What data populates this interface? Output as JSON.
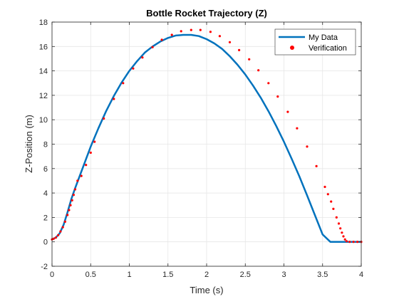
{
  "chart_data": {
    "type": "line",
    "title": "Bottle Rocket Trajectory (Z)",
    "xlabel": "Time (s)",
    "ylabel": "Z-Position (m)",
    "xlim": [
      0,
      4
    ],
    "ylim": [
      -2,
      18
    ],
    "xticks": [
      0,
      0.5,
      1,
      1.5,
      2,
      2.5,
      3,
      3.5,
      4
    ],
    "xtick_labels": [
      "0",
      "0.5",
      "1",
      "1.5",
      "2",
      "2.5",
      "3",
      "3.5",
      "4"
    ],
    "yticks": [
      -2,
      0,
      2,
      4,
      6,
      8,
      10,
      12,
      14,
      16,
      18
    ],
    "ytick_labels": [
      "-2",
      "0",
      "2",
      "4",
      "6",
      "8",
      "10",
      "12",
      "14",
      "16",
      "18"
    ],
    "grid": true,
    "legend_position": "top-right",
    "series": [
      {
        "name": "My Data",
        "style": "line",
        "color": "#0072BD",
        "x": [
          0,
          0.05,
          0.1,
          0.15,
          0.2,
          0.25,
          0.3,
          0.4,
          0.5,
          0.6,
          0.7,
          0.8,
          0.9,
          1.0,
          1.1,
          1.2,
          1.3,
          1.4,
          1.5,
          1.6,
          1.7,
          1.8,
          1.9,
          2.0,
          2.1,
          2.2,
          2.3,
          2.4,
          2.5,
          2.6,
          2.7,
          2.8,
          2.9,
          3.0,
          3.1,
          3.2,
          3.3,
          3.4,
          3.5,
          3.6,
          3.7,
          3.78,
          3.8,
          3.9,
          4.0
        ],
        "y": [
          0.2,
          0.35,
          0.7,
          1.4,
          2.4,
          3.5,
          4.4,
          6.1,
          7.8,
          9.3,
          10.7,
          11.95,
          13.05,
          14.0,
          14.8,
          15.5,
          16.0,
          16.4,
          16.7,
          16.9,
          16.95,
          16.95,
          16.85,
          16.6,
          16.25,
          15.8,
          15.2,
          14.5,
          13.7,
          12.8,
          11.8,
          10.7,
          9.5,
          8.2,
          6.8,
          5.35,
          3.8,
          2.2,
          0.6,
          -0.0,
          0.0,
          0.0,
          0.0,
          0.0,
          0.0
        ]
      },
      {
        "name": "Verification",
        "style": "markers",
        "color": "#FF0000",
        "x": [
          0.0,
          0.02,
          0.05,
          0.08,
          0.11,
          0.14,
          0.17,
          0.2,
          0.22,
          0.24,
          0.26,
          0.28,
          0.3,
          0.33,
          0.38,
          0.44,
          0.5,
          0.55,
          0.67,
          0.8,
          0.92,
          1.05,
          1.17,
          1.3,
          1.42,
          1.55,
          1.67,
          1.8,
          1.92,
          2.05,
          2.17,
          2.3,
          2.42,
          2.55,
          2.67,
          2.8,
          2.92,
          3.05,
          3.17,
          3.3,
          3.42,
          3.53,
          3.57,
          3.61,
          3.64,
          3.68,
          3.71,
          3.73,
          3.75,
          3.77,
          3.79,
          3.81,
          3.85,
          3.9,
          3.95,
          4.0
        ],
        "y": [
          0.2,
          0.25,
          0.35,
          0.55,
          0.85,
          1.2,
          1.65,
          2.2,
          2.6,
          3.0,
          3.4,
          3.85,
          4.3,
          5.0,
          5.4,
          6.3,
          7.3,
          8.2,
          10.1,
          11.7,
          13.0,
          14.2,
          15.1,
          15.95,
          16.55,
          16.95,
          17.25,
          17.35,
          17.35,
          17.2,
          16.85,
          16.35,
          15.7,
          14.95,
          14.05,
          13.0,
          11.9,
          10.65,
          9.3,
          7.8,
          6.2,
          4.5,
          3.9,
          3.3,
          2.7,
          2.0,
          1.5,
          1.1,
          0.75,
          0.45,
          0.2,
          0.05,
          0.0,
          0.0,
          0.0,
          0.0
        ]
      }
    ]
  }
}
